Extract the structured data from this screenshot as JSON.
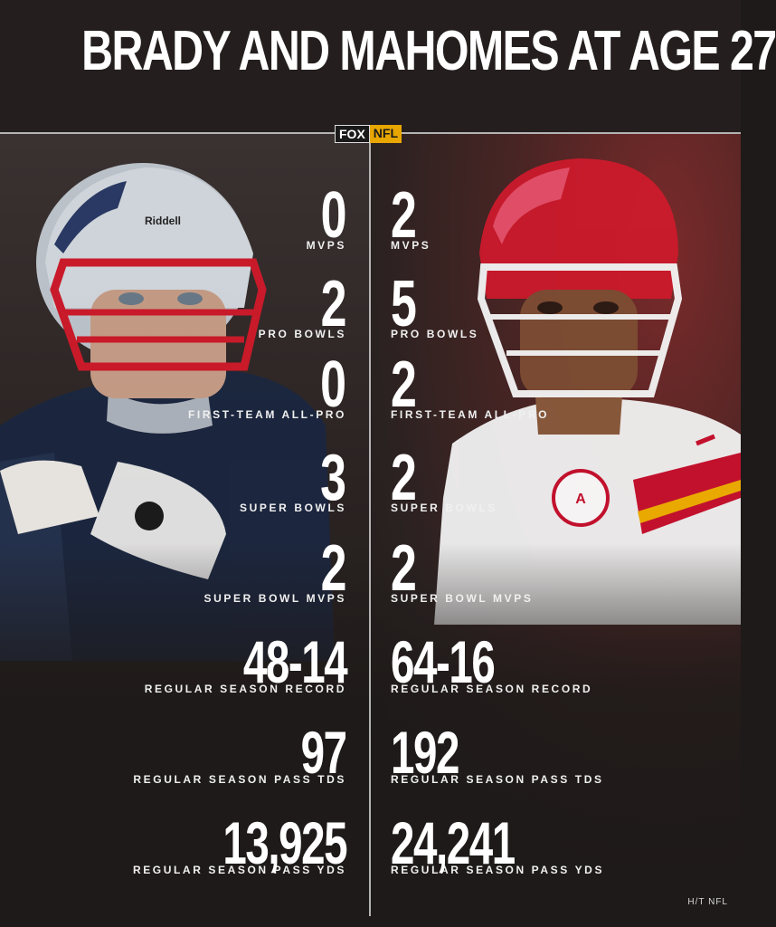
{
  "title": "BRADY AND MAHOMES AT AGE 27",
  "logo": {
    "fox": "FOX",
    "nfl": "NFL"
  },
  "players": {
    "left_name": "Brady",
    "right_name": "Mahomes",
    "left_helmet_brand": "Riddell"
  },
  "stats": [
    {
      "label": "MVPS",
      "left": "0",
      "right": "2"
    },
    {
      "label": "PRO BOWLS",
      "left": "2",
      "right": "5"
    },
    {
      "label": "FIRST-TEAM ALL-PRO",
      "left": "0",
      "right": "2"
    },
    {
      "label": "SUPER BOWLS",
      "left": "3",
      "right": "2"
    },
    {
      "label": "SUPER BOWL MVPS",
      "left": "2",
      "right": "2"
    },
    {
      "label": "REGULAR SEASON RECORD",
      "left": "48-14",
      "right": "64-16"
    },
    {
      "label": "REGULAR SEASON PASS TDS",
      "left": "97",
      "right": "192"
    },
    {
      "label": "REGULAR SEASON PASS YDS",
      "left": "13,925",
      "right": "24,241"
    }
  ],
  "credit": "H/T NFL",
  "colors": {
    "background": "#1e1a19",
    "patriots_navy": "#1b2740",
    "chiefs_red": "#c8102e",
    "chiefs_gold": "#f2b100",
    "nfl_gold": "#e8a600"
  }
}
